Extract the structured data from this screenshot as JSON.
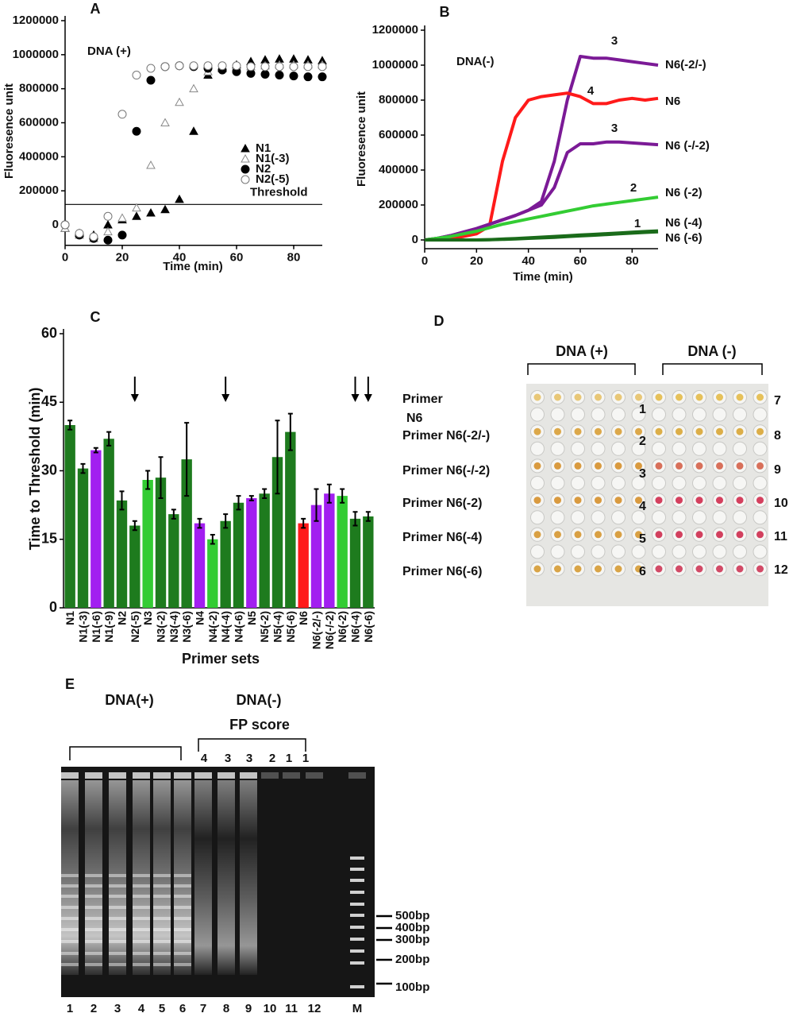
{
  "chart_data": [
    {
      "type": "scatter",
      "title": "A",
      "annotation": "DNA (+)",
      "xlabel": "Time (min)",
      "ylabel": "Fluoresence unit",
      "x": [
        0,
        5,
        10,
        15,
        20,
        25,
        30,
        35,
        40,
        45,
        50,
        55,
        60,
        65,
        70,
        75,
        80,
        85,
        90
      ],
      "series": [
        {
          "name": "N1",
          "marker": "triangle",
          "filled": true,
          "color": "#000000",
          "values": [
            -20000,
            -50000,
            -60000,
            0,
            30000,
            50000,
            70000,
            90000,
            150000,
            550000,
            880000,
            920000,
            940000,
            960000,
            970000,
            975000,
            975000,
            970000,
            965000
          ]
        },
        {
          "name": "N1(-3)",
          "marker": "triangle",
          "filled": false,
          "color": "#888888",
          "values": [
            -20000,
            -60000,
            -80000,
            -40000,
            40000,
            100000,
            350000,
            600000,
            720000,
            800000,
            900000,
            930000,
            930000,
            930000,
            935000,
            940000,
            940000,
            940000,
            940000
          ]
        },
        {
          "name": "N2",
          "marker": "circle",
          "filled": true,
          "color": "#000000",
          "values": [
            0,
            -60000,
            -80000,
            -90000,
            -60000,
            550000,
            850000,
            930000,
            935000,
            930000,
            920000,
            910000,
            900000,
            890000,
            885000,
            880000,
            875000,
            870000,
            870000
          ]
        },
        {
          "name": "N2(-5)",
          "marker": "circle",
          "filled": false,
          "color": "#777777",
          "values": [
            0,
            -50000,
            -70000,
            50000,
            650000,
            880000,
            920000,
            930000,
            935000,
            935000,
            935000,
            935000,
            935000,
            930000,
            930000,
            930000,
            930000,
            930000,
            930000
          ]
        }
      ],
      "threshold": {
        "label": "Threshold",
        "value": 120000
      },
      "xlim": [
        0,
        90
      ],
      "ylim": [
        -120000,
        1200000
      ],
      "xticks": [
        0,
        20,
        40,
        60,
        80
      ],
      "yticks": [
        0,
        200000,
        400000,
        600000,
        800000,
        1000000,
        1200000
      ]
    },
    {
      "type": "line",
      "title": "B",
      "annotation": "DNA(-)",
      "xlabel": "Time (min)",
      "ylabel": "Fluoresence unit",
      "x": [
        0,
        5,
        10,
        15,
        20,
        25,
        30,
        35,
        40,
        45,
        50,
        55,
        60,
        65,
        70,
        75,
        80,
        85,
        90
      ],
      "series": [
        {
          "name": "N6(-2/-)",
          "score": 3,
          "color": "#7b1a96",
          "values": [
            0,
            10000,
            25000,
            45000,
            65000,
            90000,
            115000,
            140000,
            170000,
            220000,
            450000,
            800000,
            1050000,
            1040000,
            1040000,
            1030000,
            1020000,
            1010000,
            1000000
          ]
        },
        {
          "name": "N6",
          "score": 4,
          "color": "#ff1a1a",
          "values": [
            0,
            5000,
            10000,
            20000,
            35000,
            80000,
            450000,
            700000,
            800000,
            820000,
            830000,
            840000,
            820000,
            780000,
            780000,
            800000,
            810000,
            800000,
            810000
          ]
        },
        {
          "name": "N6 (-/-2)",
          "score": 3,
          "color": "#7b1a96",
          "values": [
            0,
            10000,
            25000,
            45000,
            65000,
            90000,
            115000,
            140000,
            170000,
            200000,
            300000,
            500000,
            550000,
            550000,
            560000,
            560000,
            555000,
            550000,
            545000
          ]
        },
        {
          "name": "N6 (-2)",
          "score": 2,
          "color": "#33cc33",
          "values": [
            0,
            10000,
            20000,
            35000,
            50000,
            70000,
            90000,
            105000,
            120000,
            135000,
            150000,
            165000,
            180000,
            195000,
            205000,
            215000,
            225000,
            235000,
            245000
          ]
        },
        {
          "name": "N6 (-4)",
          "score": 1,
          "color": "#1a6b1a",
          "values": [
            0,
            0,
            0,
            0,
            0,
            2000,
            5000,
            8000,
            12000,
            16000,
            20000,
            24000,
            28000,
            32000,
            36000,
            40000,
            44000,
            48000,
            52000
          ]
        },
        {
          "name": "N6 (-6)",
          "color": "#1a6b1a",
          "values": [
            0,
            0,
            0,
            0,
            0,
            1000,
            3000,
            6000,
            9000,
            12000,
            15000,
            19000,
            23000,
            27000,
            31000,
            35000,
            39000,
            43000,
            47000
          ]
        }
      ],
      "xlim": [
        0,
        90
      ],
      "ylim": [
        -50000,
        1200000
      ],
      "xticks": [
        0,
        20,
        40,
        60,
        80
      ],
      "yticks": [
        0,
        200000,
        400000,
        600000,
        800000,
        1000000,
        1200000
      ]
    },
    {
      "type": "bar",
      "title": "C",
      "xlabel": "Primer sets",
      "ylabel": "Time to Threshold (min)",
      "categories": [
        "N1",
        "N1(-3)",
        "N1(-6)",
        "N1(-9)",
        "N2",
        "N2(-5)",
        "N3",
        "N3(-2)",
        "N3(-4)",
        "N3(-6)",
        "N4",
        "N4(-2)",
        "N4(-4)",
        "N4(-6)",
        "N5",
        "N5(-2)",
        "N5(-4)",
        "N5(-6)",
        "N6",
        "N6(-2/-)",
        "N6(-/-2)",
        "N6(-2)",
        "N6(-4)",
        "N6(-6)"
      ],
      "values": [
        40,
        30.5,
        34.5,
        37,
        23.5,
        18,
        28,
        28.5,
        20.5,
        32.5,
        18.5,
        15,
        19,
        23,
        24,
        25,
        33,
        38.5,
        18.5,
        22.5,
        25,
        24.5,
        19.5,
        20
      ],
      "errors": [
        1,
        1,
        0.5,
        1.5,
        2,
        1,
        2,
        4.5,
        1,
        8,
        1,
        1,
        1.5,
        1.5,
        0.5,
        1,
        8,
        4,
        1,
        3.5,
        2,
        1.5,
        1.5,
        1
      ],
      "colors": [
        "#1e7b1e",
        "#1e7b1e",
        "#a21ff0",
        "#1e7b1e",
        "#1e7b1e",
        "#1e7b1e",
        "#33cc33",
        "#1e7b1e",
        "#1e7b1e",
        "#1e7b1e",
        "#a21ff0",
        "#33cc33",
        "#1e7b1e",
        "#1e7b1e",
        "#a21ff0",
        "#1e7b1e",
        "#1e7b1e",
        "#1e7b1e",
        "#ff1a1a",
        "#a21ff0",
        "#a21ff0",
        "#33cc33",
        "#1e7b1e",
        "#1e7b1e"
      ],
      "arrows": [
        "N2(-5)",
        "N4(-4)",
        "N6(-4)",
        "N6(-6)"
      ],
      "ylim": [
        0,
        60
      ],
      "yticks": [
        0,
        15,
        30,
        45,
        60
      ]
    }
  ],
  "plate": {
    "title": "D",
    "groups": [
      "DNA (+)",
      "DNA (-)"
    ],
    "row_labels": [
      [
        "Primer",
        "N6"
      ],
      [
        "Primer N6(-2/-)"
      ],
      [
        "Primer N6(-/-2)"
      ],
      [
        "Primer N6(-2)"
      ],
      [
        "Primer N6(-4)"
      ],
      [
        "Primer N6(-6)"
      ]
    ],
    "left_numbers": [
      1,
      2,
      3,
      4,
      5,
      6
    ],
    "right_numbers": [
      7,
      8,
      9,
      10,
      11,
      12
    ]
  },
  "gel": {
    "title": "E",
    "groups": [
      "DNA(+)",
      "DNA(-)"
    ],
    "fp_label": "FP score",
    "fp_scores": [
      4,
      3,
      3,
      2,
      1,
      1
    ],
    "lanes": [
      "1",
      "2",
      "3",
      "4",
      "5",
      "6",
      "7",
      "8",
      "9",
      "10",
      "11",
      "12",
      "M"
    ],
    "sizes": [
      "500bp",
      "400bp",
      "300bp",
      "200bp",
      "100bp"
    ]
  }
}
